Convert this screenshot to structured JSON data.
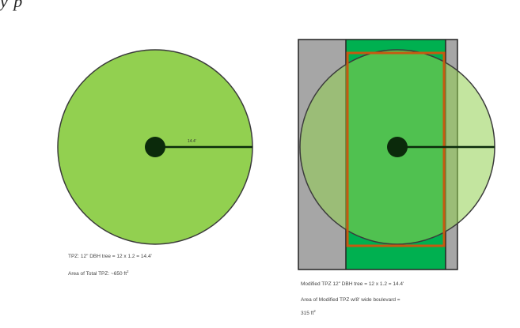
{
  "top_cutoff_text": "y              p",
  "left_diagram": {
    "radius_label": "14.4'",
    "caption_line1": "TPZ: 12\" DBH tree = 12 x 1.2 = 14.4'",
    "caption_line2": "Area of Total TPZ: ~650 ft",
    "caption_line2_sup": "2",
    "colors": {
      "fill": "#92d050",
      "outline": "#3b3b3b",
      "trunk": "#0b2a0b"
    }
  },
  "right_diagram": {
    "caption_line1": "Modified TPZ 12\" DBH tree = 12 x 1.2 = 14.4'",
    "caption_line2": "Area of Modified TPZ w/8' wide boulevard =",
    "caption_line3": "315 ft",
    "caption_line3_sup": "2",
    "colors": {
      "pavement": "#a6a6a6",
      "boulevard": "#00b050",
      "fence": "#c55a11",
      "tpz_overlay": "rgba(146,208,80,0.55)",
      "outline": "#3b3b3b",
      "trunk": "#0b2a0b"
    }
  }
}
